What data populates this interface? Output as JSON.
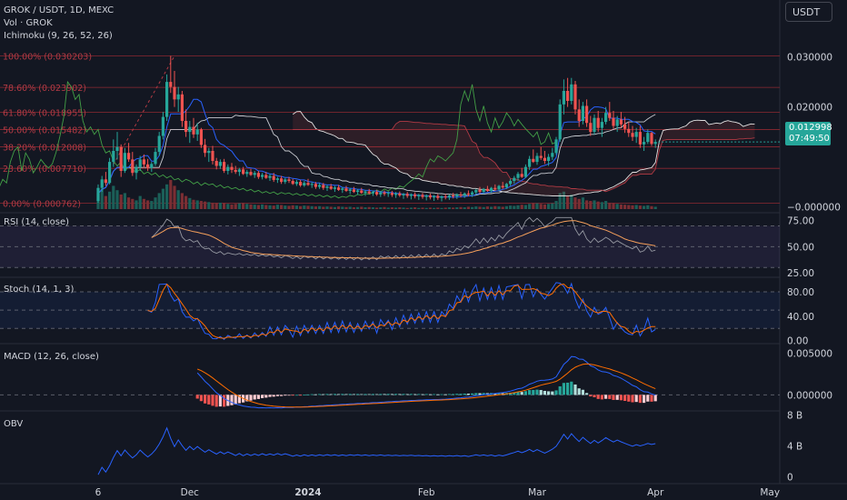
{
  "header": {
    "symbol_line": "GROK / USDT, 1D, MEXC",
    "volume_line": "Vol · GROK",
    "ichimoku_line": "Ichimoku (9, 26, 52, 26)",
    "currency_button": "USDT"
  },
  "price_tag": {
    "price": "0.012998",
    "countdown": "07:49:50"
  },
  "colors": {
    "background": "#131722",
    "up": "#26a69a",
    "down": "#ef5350",
    "fib_line": "#9c2a33",
    "fib_text": "#b23a44",
    "tenkan": "#2962ff",
    "kijun": "#d1d4dc",
    "lagging": "#43a047",
    "rsi": "#9598a1",
    "rsi_ma": "#f6a05b",
    "stoch_k": "#2962ff",
    "stoch_d": "#ff6d00",
    "macd": "#2962ff",
    "signal": "#ff6d00",
    "obv": "#2962ff"
  },
  "fib_levels": [
    {
      "label": "100.00% (0.030203)",
      "value": 0.030203
    },
    {
      "label": "78.60% (0.023902)",
      "value": 0.023902
    },
    {
      "label": "61.80% (0.018955)",
      "value": 0.018955
    },
    {
      "label": "50.00% (0.015482)",
      "value": 0.015482
    },
    {
      "label": "38.20% (0.012008)",
      "value": 0.012008
    },
    {
      "label": "23.60% (0.007710)",
      "value": 0.00771
    },
    {
      "label": "0.00% (0.000762)",
      "value": 0.000762
    }
  ],
  "price_axis": {
    "range": [
      -0.0008,
      0.0312
    ],
    "ticks": [
      {
        "label": "0.030000",
        "value": 0.03
      },
      {
        "label": "0.020000",
        "value": 0.02
      },
      {
        "label": "−0.000000",
        "value": 0.0
      }
    ]
  },
  "panes": {
    "rsi": {
      "title": "RSI (14, close)",
      "range": [
        25,
        80
      ],
      "ticks": [
        {
          "label": "75.00",
          "value": 75
        },
        {
          "label": "50.00",
          "value": 50
        },
        {
          "label": "25.00",
          "value": 25
        }
      ],
      "band": [
        30,
        70
      ]
    },
    "stoch": {
      "title": "Stoch (14, 1, 3)",
      "range": [
        -2,
        95
      ],
      "ticks": [
        {
          "label": "80.00",
          "value": 80
        },
        {
          "label": "40.00",
          "value": 40
        },
        {
          "label": "0.00",
          "value": 0
        }
      ],
      "band": [
        20,
        80
      ]
    },
    "macd": {
      "title": "MACD (12, 26, close)",
      "range": [
        -0.0017,
        0.0058
      ],
      "ticks": [
        {
          "label": "0.005000",
          "value": 0.005
        },
        {
          "label": "0.000000",
          "value": 0
        }
      ]
    },
    "obv": {
      "title": "OBV",
      "range": [
        -0.4,
        8.2
      ],
      "ticks": [
        {
          "label": "8 B",
          "value": 8
        },
        {
          "label": "4 B",
          "value": 4
        },
        {
          "label": "0",
          "value": 0
        }
      ]
    }
  },
  "time_axis": {
    "labels": [
      {
        "label": "6",
        "bar": 0,
        "bold": false
      },
      {
        "label": "Dec",
        "bar": 24,
        "bold": false
      },
      {
        "label": "2024",
        "bar": 55,
        "bold": true
      },
      {
        "label": "Feb",
        "bar": 86,
        "bold": false
      },
      {
        "label": "Mar",
        "bar": 115,
        "bold": false
      },
      {
        "label": "Apr",
        "bar": 146,
        "bold": false
      },
      {
        "label": "May",
        "bar": 176,
        "bold": false
      }
    ]
  },
  "chart_data": {
    "type": "candlestick",
    "title": "GROK / USDT, 1D, MEXC",
    "note_bars": "one candle per day starting Nov 6 2023",
    "candles": [
      [
        0.0012,
        0.0045,
        0.0008,
        0.0038
      ],
      [
        0.0038,
        0.0062,
        0.003,
        0.0055
      ],
      [
        0.0055,
        0.007,
        0.0042,
        0.0048
      ],
      [
        0.0048,
        0.0098,
        0.0045,
        0.009
      ],
      [
        0.009,
        0.0135,
        0.008,
        0.0112
      ],
      [
        0.0112,
        0.015,
        0.0095,
        0.012
      ],
      [
        0.012,
        0.0125,
        0.006,
        0.0072
      ],
      [
        0.0072,
        0.0118,
        0.0068,
        0.0108
      ],
      [
        0.0108,
        0.0128,
        0.009,
        0.0095
      ],
      [
        0.0095,
        0.011,
        0.0062,
        0.0068
      ],
      [
        0.0068,
        0.0085,
        0.0055,
        0.008
      ],
      [
        0.008,
        0.0102,
        0.0072,
        0.0095
      ],
      [
        0.0095,
        0.0105,
        0.0078,
        0.0085
      ],
      [
        0.0085,
        0.0096,
        0.0072,
        0.0078
      ],
      [
        0.0078,
        0.009,
        0.007,
        0.0086
      ],
      [
        0.0086,
        0.0118,
        0.0082,
        0.011
      ],
      [
        0.011,
        0.015,
        0.0102,
        0.0142
      ],
      [
        0.0142,
        0.019,
        0.0135,
        0.018
      ],
      [
        0.018,
        0.0265,
        0.0172,
        0.025
      ],
      [
        0.025,
        0.0302,
        0.0228,
        0.024
      ],
      [
        0.024,
        0.0272,
        0.02,
        0.0215
      ],
      [
        0.0215,
        0.024,
        0.019,
        0.0225
      ],
      [
        0.0225,
        0.0232,
        0.016,
        0.0172
      ],
      [
        0.0172,
        0.0195,
        0.014,
        0.015
      ],
      [
        0.015,
        0.0172,
        0.0128,
        0.016
      ],
      [
        0.016,
        0.0178,
        0.0138,
        0.0145
      ],
      [
        0.0145,
        0.0168,
        0.0132,
        0.0155
      ],
      [
        0.0155,
        0.0158,
        0.0118,
        0.0124
      ],
      [
        0.0124,
        0.0136,
        0.01,
        0.0108
      ],
      [
        0.0108,
        0.0118,
        0.009,
        0.0112
      ],
      [
        0.0112,
        0.0122,
        0.0085,
        0.0092
      ],
      [
        0.0092,
        0.0098,
        0.0075,
        0.0082
      ],
      [
        0.0082,
        0.0095,
        0.0076,
        0.009
      ],
      [
        0.009,
        0.0096,
        0.0068,
        0.0072
      ],
      [
        0.0072,
        0.0085,
        0.0065,
        0.008
      ],
      [
        0.008,
        0.0088,
        0.0068,
        0.0074
      ],
      [
        0.0074,
        0.0082,
        0.0066,
        0.007
      ],
      [
        0.007,
        0.0078,
        0.0062,
        0.0075
      ],
      [
        0.0075,
        0.008,
        0.0064,
        0.0066
      ],
      [
        0.0066,
        0.0074,
        0.006,
        0.007
      ],
      [
        0.007,
        0.0076,
        0.0062,
        0.0064
      ],
      [
        0.0064,
        0.0072,
        0.0058,
        0.0068
      ],
      [
        0.0068,
        0.0072,
        0.0056,
        0.006
      ],
      [
        0.006,
        0.0068,
        0.0055,
        0.0064
      ],
      [
        0.0064,
        0.007,
        0.0056,
        0.0058
      ],
      [
        0.0058,
        0.0066,
        0.0052,
        0.0062
      ],
      [
        0.0062,
        0.0068,
        0.005,
        0.0054
      ],
      [
        0.0054,
        0.006,
        0.0048,
        0.0057
      ],
      [
        0.0057,
        0.0062,
        0.0046,
        0.005
      ],
      [
        0.005,
        0.0058,
        0.0046,
        0.0055
      ],
      [
        0.0055,
        0.006,
        0.0048,
        0.0052
      ],
      [
        0.0052,
        0.0056,
        0.0044,
        0.0046
      ],
      [
        0.0046,
        0.0054,
        0.0042,
        0.005
      ],
      [
        0.005,
        0.0054,
        0.004,
        0.0043
      ],
      [
        0.0043,
        0.0052,
        0.004,
        0.0048
      ],
      [
        0.0048,
        0.0056,
        0.0042,
        0.0044
      ],
      [
        0.0044,
        0.005,
        0.0038,
        0.0046
      ],
      [
        0.0046,
        0.005,
        0.0036,
        0.004
      ],
      [
        0.004,
        0.0048,
        0.0036,
        0.0044
      ],
      [
        0.0044,
        0.0048,
        0.0034,
        0.0038
      ],
      [
        0.0038,
        0.0044,
        0.0032,
        0.0041
      ],
      [
        0.0041,
        0.0046,
        0.0034,
        0.0036
      ],
      [
        0.0036,
        0.0042,
        0.003,
        0.0039
      ],
      [
        0.0039,
        0.0044,
        0.0032,
        0.0034
      ],
      [
        0.0034,
        0.004,
        0.0028,
        0.0037
      ],
      [
        0.0037,
        0.0042,
        0.003,
        0.0032
      ],
      [
        0.0032,
        0.0038,
        0.0026,
        0.0035
      ],
      [
        0.0035,
        0.004,
        0.0028,
        0.003
      ],
      [
        0.003,
        0.0036,
        0.0024,
        0.0033
      ],
      [
        0.0033,
        0.0038,
        0.0026,
        0.0028
      ],
      [
        0.0028,
        0.0034,
        0.0022,
        0.0031
      ],
      [
        0.0031,
        0.0036,
        0.0025,
        0.0027
      ],
      [
        0.0027,
        0.0033,
        0.0022,
        0.003
      ],
      [
        0.003,
        0.0034,
        0.0022,
        0.0025
      ],
      [
        0.0025,
        0.0032,
        0.002,
        0.0029
      ],
      [
        0.0029,
        0.0033,
        0.0022,
        0.0026
      ],
      [
        0.0026,
        0.0031,
        0.002,
        0.0028
      ],
      [
        0.0028,
        0.0032,
        0.002,
        0.0024
      ],
      [
        0.0024,
        0.003,
        0.0018,
        0.0027
      ],
      [
        0.0027,
        0.0031,
        0.002,
        0.0023
      ],
      [
        0.0023,
        0.0028,
        0.0016,
        0.0026
      ],
      [
        0.0026,
        0.003,
        0.0018,
        0.0022
      ],
      [
        0.0022,
        0.0027,
        0.0015,
        0.0025
      ],
      [
        0.0025,
        0.0029,
        0.0017,
        0.0021
      ],
      [
        0.0021,
        0.0026,
        0.0014,
        0.0024
      ],
      [
        0.0024,
        0.0028,
        0.0016,
        0.002
      ],
      [
        0.002,
        0.0025,
        0.0013,
        0.0023
      ],
      [
        0.0023,
        0.0027,
        0.0015,
        0.0019
      ],
      [
        0.0019,
        0.0024,
        0.0012,
        0.0022
      ],
      [
        0.0022,
        0.0026,
        0.0014,
        0.0018
      ],
      [
        0.0018,
        0.0023,
        0.0011,
        0.0021
      ],
      [
        0.0021,
        0.0026,
        0.0015,
        0.0019
      ],
      [
        0.0019,
        0.0025,
        0.0014,
        0.0023
      ],
      [
        0.0023,
        0.0028,
        0.0017,
        0.0021
      ],
      [
        0.0021,
        0.0027,
        0.0016,
        0.0025
      ],
      [
        0.0025,
        0.003,
        0.0019,
        0.0023
      ],
      [
        0.0023,
        0.0029,
        0.0018,
        0.0027
      ],
      [
        0.0027,
        0.0033,
        0.0021,
        0.0025
      ],
      [
        0.0025,
        0.0032,
        0.002,
        0.0029
      ],
      [
        0.0029,
        0.0036,
        0.0024,
        0.0034
      ],
      [
        0.0034,
        0.004,
        0.0026,
        0.003
      ],
      [
        0.003,
        0.0038,
        0.0026,
        0.0036
      ],
      [
        0.0036,
        0.0042,
        0.003,
        0.0032
      ],
      [
        0.0032,
        0.004,
        0.0028,
        0.0038
      ],
      [
        0.0038,
        0.0045,
        0.0032,
        0.0035
      ],
      [
        0.0035,
        0.0044,
        0.0032,
        0.0042
      ],
      [
        0.0042,
        0.005,
        0.0036,
        0.0039
      ],
      [
        0.0039,
        0.0048,
        0.0036,
        0.0046
      ],
      [
        0.0046,
        0.0056,
        0.0042,
        0.0052
      ],
      [
        0.0052,
        0.0062,
        0.0046,
        0.0058
      ],
      [
        0.0058,
        0.007,
        0.0052,
        0.0066
      ],
      [
        0.0066,
        0.0078,
        0.0058,
        0.006
      ],
      [
        0.006,
        0.0085,
        0.0058,
        0.008
      ],
      [
        0.008,
        0.0102,
        0.0074,
        0.0096
      ],
      [
        0.0096,
        0.0115,
        0.0088,
        0.009
      ],
      [
        0.009,
        0.0108,
        0.0084,
        0.0102
      ],
      [
        0.0102,
        0.012,
        0.0094,
        0.0098
      ],
      [
        0.0098,
        0.0112,
        0.0086,
        0.0092
      ],
      [
        0.0092,
        0.0106,
        0.0082,
        0.01
      ],
      [
        0.01,
        0.0118,
        0.0094,
        0.0108
      ],
      [
        0.0108,
        0.014,
        0.0104,
        0.0135
      ],
      [
        0.0135,
        0.0215,
        0.013,
        0.0205
      ],
      [
        0.0205,
        0.0255,
        0.0185,
        0.0232
      ],
      [
        0.0232,
        0.0258,
        0.02,
        0.0212
      ],
      [
        0.0212,
        0.0258,
        0.0205,
        0.0245
      ],
      [
        0.0245,
        0.0252,
        0.0185,
        0.0195
      ],
      [
        0.0195,
        0.0215,
        0.016,
        0.0172
      ],
      [
        0.0172,
        0.021,
        0.0165,
        0.0202
      ],
      [
        0.0202,
        0.0215,
        0.016,
        0.0168
      ],
      [
        0.0168,
        0.0182,
        0.0142,
        0.015
      ],
      [
        0.015,
        0.0185,
        0.0145,
        0.0178
      ],
      [
        0.0178,
        0.0192,
        0.015,
        0.0158
      ],
      [
        0.0158,
        0.0178,
        0.014,
        0.017
      ],
      [
        0.017,
        0.02,
        0.0165,
        0.0188
      ],
      [
        0.0188,
        0.021,
        0.0172,
        0.0178
      ],
      [
        0.0178,
        0.0192,
        0.0156,
        0.0162
      ],
      [
        0.0162,
        0.0182,
        0.015,
        0.0175
      ],
      [
        0.0175,
        0.019,
        0.0158,
        0.0165
      ],
      [
        0.0165,
        0.018,
        0.0148,
        0.0156
      ],
      [
        0.0156,
        0.017,
        0.014,
        0.0148
      ],
      [
        0.0148,
        0.0162,
        0.0132,
        0.014
      ],
      [
        0.014,
        0.0158,
        0.0128,
        0.015
      ],
      [
        0.015,
        0.0162,
        0.0118,
        0.0125
      ],
      [
        0.0125,
        0.014,
        0.0112,
        0.013
      ],
      [
        0.013,
        0.0155,
        0.0126,
        0.0148
      ],
      [
        0.0148,
        0.015,
        0.0122,
        0.0126
      ],
      [
        0.0126,
        0.0135,
        0.0118,
        0.013
      ]
    ],
    "fib_levels": [
      0.030203,
      0.023902,
      0.018955,
      0.015482,
      0.012008,
      0.00771,
      0.000762
    ],
    "volume_heights_rel": [
      0.55,
      0.7,
      0.45,
      0.6,
      0.8,
      0.65,
      0.5,
      0.55,
      0.4,
      0.35,
      0.3,
      0.45,
      0.35,
      0.3,
      0.28,
      0.4,
      0.55,
      0.7,
      0.85,
      1.0,
      0.8,
      0.65,
      0.55,
      0.45,
      0.38,
      0.32,
      0.3,
      0.28,
      0.26,
      0.24,
      0.22,
      0.2,
      0.22,
      0.2,
      0.18,
      0.16,
      0.18,
      0.2,
      0.22,
      0.18,
      0.16,
      0.15,
      0.14,
      0.16,
      0.14,
      0.13,
      0.12,
      0.15,
      0.14,
      0.12,
      0.11,
      0.13,
      0.12,
      0.1,
      0.12,
      0.11,
      0.1,
      0.09,
      0.1,
      0.08,
      0.09,
      0.08,
      0.07,
      0.09,
      0.08,
      0.07,
      0.08,
      0.06,
      0.07,
      0.08,
      0.06,
      0.07,
      0.06,
      0.05,
      0.06,
      0.07,
      0.05,
      0.06,
      0.05,
      0.06,
      0.05,
      0.04,
      0.05,
      0.06,
      0.04,
      0.05,
      0.04,
      0.05,
      0.04,
      0.05,
      0.04,
      0.05,
      0.06,
      0.05,
      0.06,
      0.07,
      0.06,
      0.08,
      0.07,
      0.09,
      0.08,
      0.07,
      0.09,
      0.08,
      0.1,
      0.09,
      0.08,
      0.1,
      0.12,
      0.11,
      0.13,
      0.15,
      0.14,
      0.18,
      0.22,
      0.2,
      0.18,
      0.16,
      0.18,
      0.2,
      0.28,
      0.55,
      0.6,
      0.45,
      0.5,
      0.4,
      0.35,
      0.4,
      0.3,
      0.28,
      0.3,
      0.26,
      0.24,
      0.28,
      0.22,
      0.2,
      0.18,
      0.16,
      0.15,
      0.14,
      0.13,
      0.14,
      0.12,
      0.11,
      0.13,
      0.1,
      0.08
    ]
  }
}
